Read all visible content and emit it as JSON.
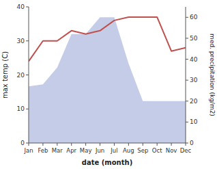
{
  "chart_data": {
    "type": "line",
    "xlabel": "date (month)",
    "ylabel": "max temp (C)",
    "y2label": "med. precipitation (kg/m2)",
    "categories": [
      "Jan",
      "Feb",
      "Mar",
      "Apr",
      "May",
      "Jun",
      "Jul",
      "Aug",
      "Sep",
      "Oct",
      "Nov",
      "Dec"
    ],
    "series": [
      {
        "type": "area",
        "axis": "y2",
        "color": "#c5cce8",
        "values": [
          27,
          28,
          36,
          52,
          52,
          60,
          60,
          38,
          20,
          20,
          20,
          20
        ]
      },
      {
        "type": "line",
        "color": "#c0504d",
        "values": [
          24,
          30,
          30,
          33,
          32,
          33,
          36,
          37,
          37,
          37,
          27,
          28
        ]
      }
    ],
    "ylim": [
      0,
      40
    ],
    "yticks": [
      0,
      10,
      20,
      30,
      40
    ],
    "y2lim": [
      0,
      65
    ],
    "y2ticks": [
      0,
      10,
      20,
      30,
      40,
      50,
      60
    ]
  }
}
